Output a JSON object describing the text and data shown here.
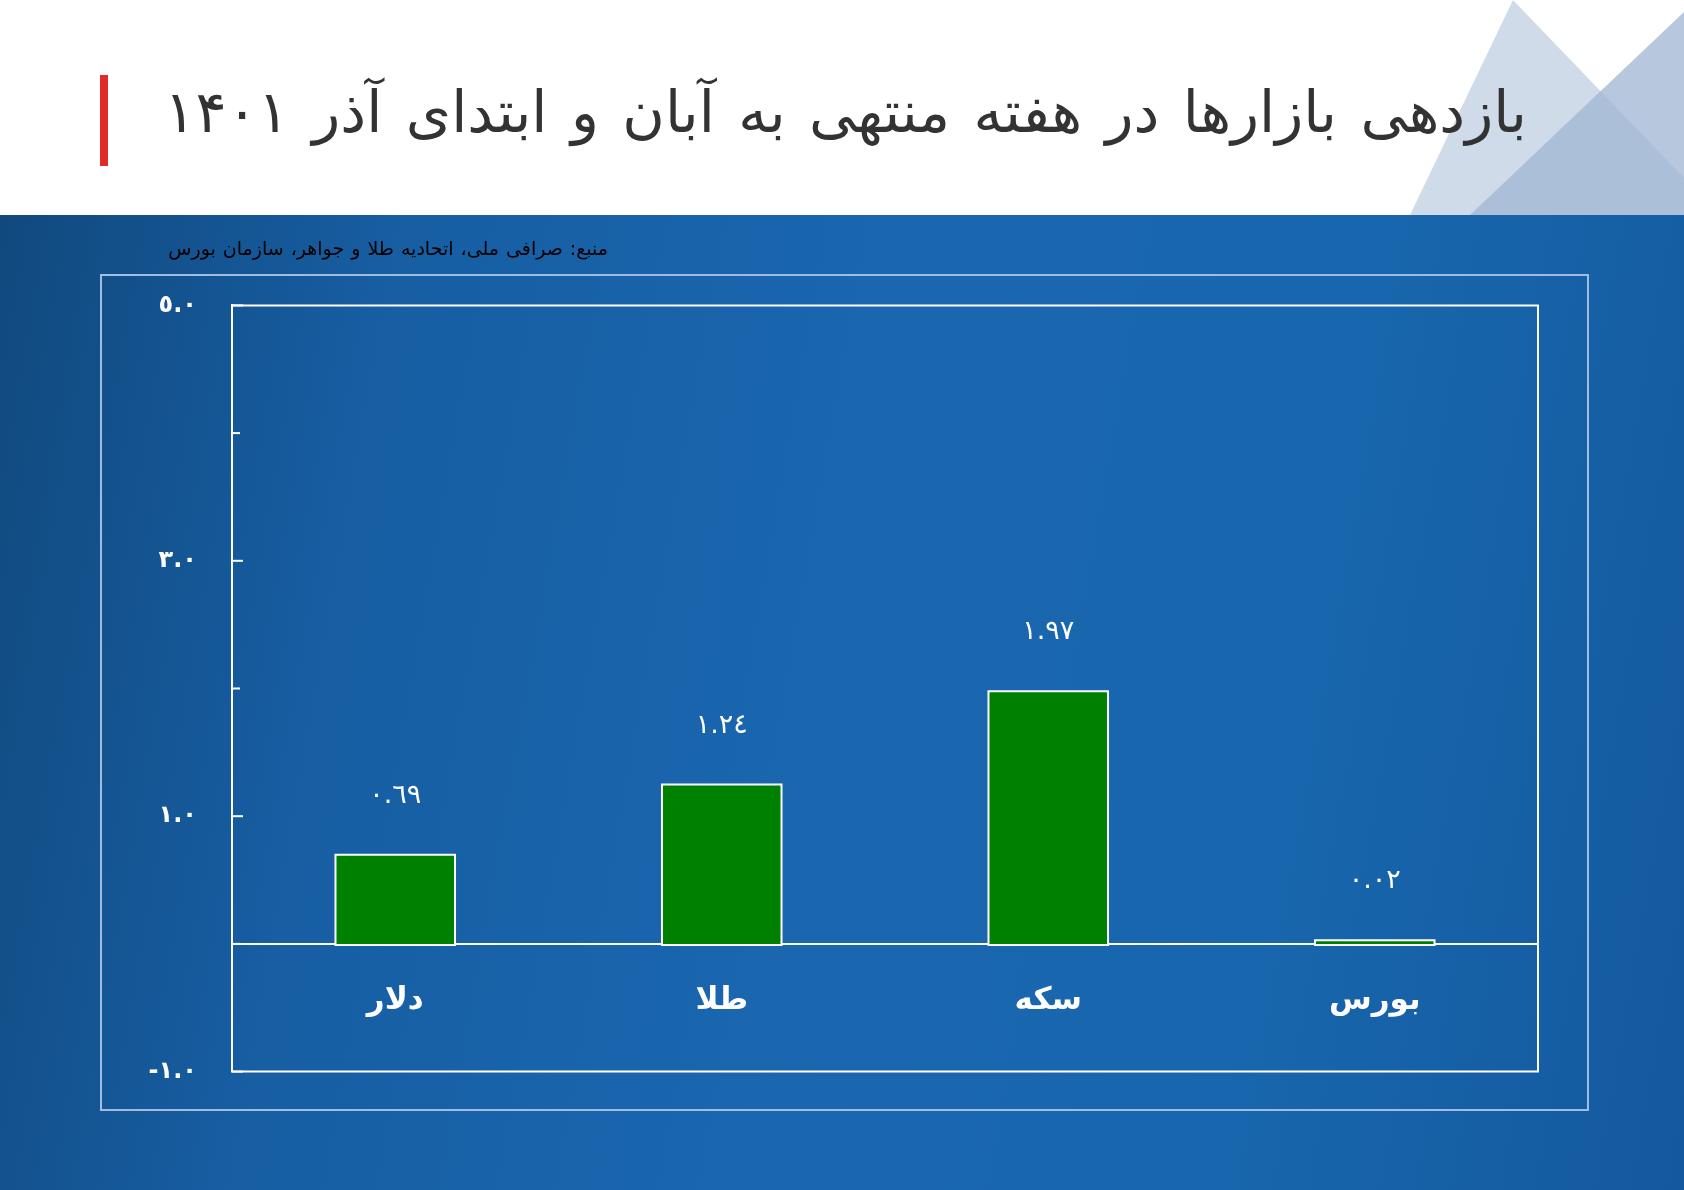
{
  "chart_data": {
    "type": "bar",
    "title": "بازدهی بازارها در هفته منتهی به آبان و ابتدای آذر ۱۴۰۱",
    "annotations": [
      "منبع: صرافی ملی، اتحادیه طلا و جواهر، سازمان بورس"
    ],
    "categories": [
      "دلار",
      "طلا",
      "سکه",
      "بورس"
    ],
    "values": [
      0.69,
      1.24,
      1.97,
      0.02
    ],
    "value_labels": [
      "٠.٦٩",
      "١.٢٤",
      "١.٩٧",
      "٠.٠٢"
    ],
    "color": "#008000",
    "ylim": [
      -1,
      5
    ],
    "yticks": [
      {
        "value": -1,
        "label": "-١.٠"
      },
      {
        "value": 0,
        "label": null
      },
      {
        "value": 1,
        "label": "١.٠"
      },
      {
        "value": 2,
        "label": null
      },
      {
        "value": 3,
        "label": "٣.٠"
      },
      {
        "value": 4,
        "label": null
      },
      {
        "value": 5,
        "label": "٥.٠"
      }
    ]
  }
}
